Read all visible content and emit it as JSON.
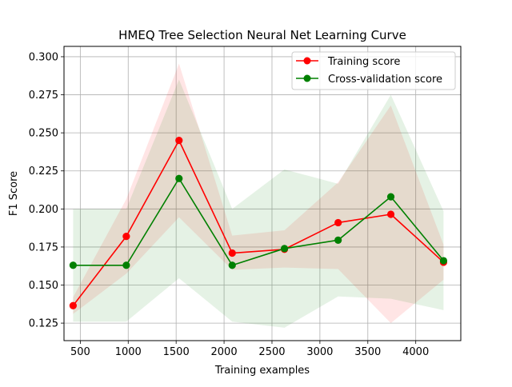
{
  "chart_data": {
    "type": "line",
    "title": "HMEQ Tree Selection Neural Net Learning Curve",
    "xlabel": "Training examples",
    "ylabel": "F1 Score",
    "xlim": [
      330,
      4470
    ],
    "ylim": [
      0.1135,
      0.3068
    ],
    "xticks": [
      500,
      1000,
      1500,
      2000,
      2500,
      3000,
      3500,
      4000
    ],
    "yticks": [
      0.125,
      0.15,
      0.175,
      0.2,
      0.225,
      0.25,
      0.275,
      0.3
    ],
    "grid": true,
    "legend_position": "upper right",
    "x": [
      425,
      980,
      1530,
      2085,
      2630,
      3190,
      3740,
      4290
    ],
    "series": [
      {
        "name": "Training score",
        "color": "#ff0000",
        "marker": "circle",
        "values": [
          0.1365,
          0.182,
          0.245,
          0.171,
          0.1735,
          0.191,
          0.1965,
          0.165
        ],
        "band_lower": [
          0.131,
          0.1575,
          0.1945,
          0.16,
          0.1615,
          0.1605,
          0.125,
          0.1535
        ],
        "band_upper": [
          0.142,
          0.2065,
          0.2955,
          0.1825,
          0.186,
          0.2175,
          0.268,
          0.1765
        ]
      },
      {
        "name": "Cross-validation score",
        "color": "#008000",
        "marker": "circle",
        "values": [
          0.163,
          0.163,
          0.22,
          0.163,
          0.174,
          0.1795,
          0.208,
          0.166
        ],
        "band_lower": [
          0.126,
          0.126,
          0.1545,
          0.126,
          0.122,
          0.1425,
          0.141,
          0.1335
        ],
        "band_upper": [
          0.2,
          0.2,
          0.285,
          0.2,
          0.226,
          0.2165,
          0.275,
          0.1985
        ]
      }
    ]
  }
}
